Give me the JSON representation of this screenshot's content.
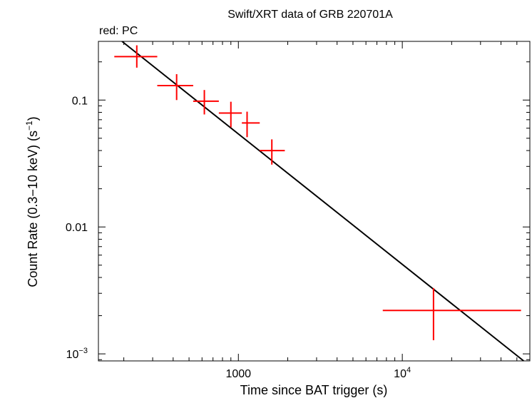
{
  "chart_data": {
    "type": "scatter",
    "title": "Swift/XRT data of GRB 220701A",
    "subtitle": "red: PC",
    "xlabel": "Time since BAT trigger (s)",
    "ylabel_main": "Count Rate (0.3−10 keV) (s",
    "ylabel_sup": "−1",
    "ylabel_close": ")",
    "xscale": "log",
    "yscale": "log",
    "xlim": [
      140,
      60000
    ],
    "ylim": [
      0.00088,
      0.29
    ],
    "x_ticks": [
      {
        "value": 1000,
        "label": "1000",
        "sup": ""
      },
      {
        "value": 10000,
        "label": "10",
        "sup": "4"
      }
    ],
    "y_ticks": [
      {
        "value": 0.1,
        "label": "0.1",
        "sup": ""
      },
      {
        "value": 0.01,
        "label": "0.01",
        "sup": ""
      },
      {
        "value": 0.001,
        "label": "10",
        "sup": "−3"
      }
    ],
    "series": [
      {
        "name": "PC",
        "color": "#ff0000",
        "points": [
          {
            "x": 240,
            "xlo": 175,
            "xhi": 320,
            "y": 0.22,
            "ylo": 0.18,
            "yhi": 0.27
          },
          {
            "x": 420,
            "xlo": 320,
            "xhi": 530,
            "y": 0.13,
            "ylo": 0.1,
            "yhi": 0.16
          },
          {
            "x": 620,
            "xlo": 530,
            "xhi": 760,
            "y": 0.098,
            "ylo": 0.077,
            "yhi": 0.12
          },
          {
            "x": 900,
            "xlo": 760,
            "xhi": 1050,
            "y": 0.079,
            "ylo": 0.061,
            "yhi": 0.097
          },
          {
            "x": 1130,
            "xlo": 1050,
            "xhi": 1350,
            "y": 0.066,
            "ylo": 0.051,
            "yhi": 0.081
          },
          {
            "x": 1600,
            "xlo": 1350,
            "xhi": 1920,
            "y": 0.04,
            "ylo": 0.031,
            "yhi": 0.049
          },
          {
            "x": 15500,
            "xlo": 7600,
            "xhi": 53000,
            "y": 0.0022,
            "ylo": 0.00128,
            "yhi": 0.0033
          }
        ]
      }
    ],
    "model": {
      "name": "power-law fit",
      "color": "#000000",
      "x": [
        195,
        55000
      ],
      "y": [
        0.29,
        0.00088
      ]
    }
  }
}
